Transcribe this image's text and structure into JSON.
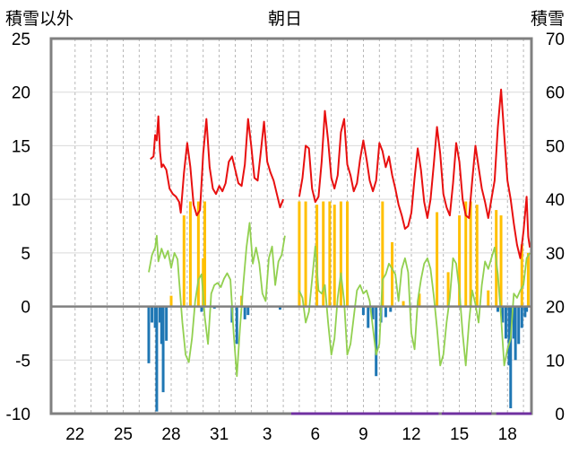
{
  "chart_data": {
    "type": "line",
    "title": "朝日",
    "ylabel_left": "積雪以外",
    "ylabel_right": "積雪",
    "x_tick_labels": [
      "22",
      "25",
      "28",
      "31",
      "3",
      "6",
      "9",
      "12",
      "15",
      "18"
    ],
    "ylim_left": [
      -10,
      25
    ],
    "ylim_right": [
      0,
      70
    ],
    "y_ticks_left": [
      -10,
      -5,
      0,
      5,
      10,
      15,
      20,
      25
    ],
    "y_ticks_right": [
      0,
      10,
      20,
      30,
      40,
      50,
      60,
      70
    ],
    "x_range_days": [
      0,
      30
    ],
    "vertical_grid_days": [
      1.5,
      2.5,
      3.5,
      4.5,
      5.5,
      6.5,
      7.5,
      8.5,
      9.5,
      10.5,
      11.5,
      12.5,
      13.5,
      14.5,
      15.5,
      16.5,
      17.5,
      18.5,
      19.5,
      20.5,
      21.5,
      22.5,
      23.5,
      24.5,
      25.5,
      26.5,
      27.5,
      28.5,
      29.5
    ],
    "tick_label_days": [
      1.5,
      4.5,
      7.5,
      10.5,
      13.5,
      16.5,
      19.5,
      22.5,
      25.5,
      28.5
    ],
    "grid": true,
    "colors": {
      "snow_depth": "#e81010",
      "temperature": "#92d050",
      "precip_positive": "#ffc000",
      "precip_negative": "#1f77b4",
      "zero_line": "#808080",
      "frame": "#808080",
      "missing_bar": "#7030a0"
    },
    "series": [
      {
        "name": "積雪",
        "axis": "right",
        "points": [
          [
            6.2,
            47.5
          ],
          [
            6.4,
            48.0
          ],
          [
            6.5,
            52.0
          ],
          [
            6.6,
            51.0
          ],
          [
            6.7,
            55.5
          ],
          [
            6.8,
            49.0
          ],
          [
            6.9,
            46.0
          ],
          [
            7.0,
            46.5
          ],
          [
            7.2,
            45.5
          ],
          [
            7.4,
            42.0
          ],
          [
            7.6,
            41.0
          ],
          [
            7.8,
            40.5
          ],
          [
            8.0,
            39.5
          ],
          [
            8.1,
            37.5
          ],
          [
            8.3,
            45.0
          ],
          [
            8.5,
            50.5
          ],
          [
            8.7,
            46.0
          ],
          [
            8.9,
            39.0
          ],
          [
            9.1,
            37.0
          ],
          [
            9.3,
            38.0
          ],
          [
            9.5,
            48.5
          ],
          [
            9.7,
            55.0
          ],
          [
            9.9,
            46.0
          ],
          [
            10.1,
            42.0
          ],
          [
            10.3,
            41.0
          ],
          [
            10.5,
            42.5
          ],
          [
            10.7,
            41.5
          ],
          [
            10.9,
            43.0
          ],
          [
            11.1,
            47.0
          ],
          [
            11.3,
            48.0
          ],
          [
            11.5,
            45.5
          ],
          [
            11.7,
            43.0
          ],
          [
            11.9,
            42.5
          ],
          [
            12.1,
            46.5
          ],
          [
            12.3,
            55.0
          ],
          [
            12.5,
            50.0
          ],
          [
            12.7,
            44.0
          ],
          [
            12.9,
            43.5
          ],
          [
            13.1,
            49.0
          ],
          [
            13.3,
            54.5
          ],
          [
            13.5,
            47.0
          ],
          [
            13.7,
            45.0
          ],
          [
            13.9,
            43.5
          ],
          [
            14.1,
            41.0
          ],
          [
            14.3,
            38.5
          ],
          [
            14.5,
            40.0
          ],
          [
            15.5,
            40.5
          ],
          [
            15.7,
            44.0
          ],
          [
            15.9,
            50.0
          ],
          [
            16.1,
            49.5
          ],
          [
            16.3,
            42.0
          ],
          [
            16.5,
            39.5
          ],
          [
            16.7,
            40.5
          ],
          [
            16.9,
            47.0
          ],
          [
            17.1,
            56.5
          ],
          [
            17.3,
            51.0
          ],
          [
            17.5,
            44.0
          ],
          [
            17.7,
            42.0
          ],
          [
            17.9,
            44.5
          ],
          [
            18.1,
            52.5
          ],
          [
            18.3,
            55.0
          ],
          [
            18.5,
            46.5
          ],
          [
            18.7,
            44.5
          ],
          [
            18.9,
            41.5
          ],
          [
            19.1,
            43.0
          ],
          [
            19.3,
            47.5
          ],
          [
            19.5,
            51.0
          ],
          [
            19.7,
            47.5
          ],
          [
            19.9,
            43.5
          ],
          [
            20.1,
            41.5
          ],
          [
            20.3,
            43.5
          ],
          [
            20.5,
            50.5
          ],
          [
            20.7,
            49.0
          ],
          [
            20.9,
            46.0
          ],
          [
            21.1,
            48.0
          ],
          [
            21.3,
            44.5
          ],
          [
            21.5,
            42.0
          ],
          [
            21.7,
            39.0
          ],
          [
            21.9,
            37.0
          ],
          [
            22.1,
            34.5
          ],
          [
            22.3,
            35.0
          ],
          [
            22.5,
            37.5
          ],
          [
            22.7,
            44.0
          ],
          [
            22.9,
            49.5
          ],
          [
            23.1,
            45.5
          ],
          [
            23.3,
            39.5
          ],
          [
            23.5,
            36.5
          ],
          [
            23.7,
            40.0
          ],
          [
            23.9,
            46.5
          ],
          [
            24.1,
            53.5
          ],
          [
            24.3,
            48.5
          ],
          [
            24.5,
            41.0
          ],
          [
            24.7,
            38.5
          ],
          [
            24.9,
            37.0
          ],
          [
            25.1,
            43.0
          ],
          [
            25.3,
            50.5
          ],
          [
            25.5,
            47.0
          ],
          [
            25.7,
            40.0
          ],
          [
            25.9,
            37.0
          ],
          [
            26.1,
            36.5
          ],
          [
            26.3,
            43.5
          ],
          [
            26.5,
            50.0
          ],
          [
            26.7,
            46.0
          ],
          [
            26.9,
            42.0
          ],
          [
            27.1,
            39.5
          ],
          [
            27.3,
            36.5
          ],
          [
            27.5,
            40.0
          ],
          [
            27.7,
            43.5
          ],
          [
            27.9,
            53.5
          ],
          [
            28.1,
            60.5
          ],
          [
            28.3,
            52.0
          ],
          [
            28.5,
            43.5
          ],
          [
            28.7,
            40.0
          ],
          [
            28.9,
            35.5
          ],
          [
            29.1,
            31.5
          ],
          [
            29.3,
            29.0
          ],
          [
            29.5,
            34.0
          ],
          [
            29.7,
            40.5
          ],
          [
            29.8,
            33.0
          ],
          [
            29.9,
            31.0
          ]
        ]
      },
      {
        "name": "気温",
        "axis": "left",
        "points": [
          [
            6.1,
            3.2
          ],
          [
            6.3,
            4.8
          ],
          [
            6.5,
            5.5
          ],
          [
            6.6,
            6.6
          ],
          [
            6.7,
            4.2
          ],
          [
            6.9,
            5.4
          ],
          [
            7.1,
            4.5
          ],
          [
            7.3,
            5.2
          ],
          [
            7.5,
            3.6
          ],
          [
            7.7,
            5.0
          ],
          [
            7.9,
            4.4
          ],
          [
            8.0,
            2.4
          ],
          [
            8.2,
            -1.5
          ],
          [
            8.4,
            -4.5
          ],
          [
            8.6,
            -5.2
          ],
          [
            8.8,
            -3.0
          ],
          [
            9.0,
            0.5
          ],
          [
            9.2,
            2.5
          ],
          [
            9.4,
            3.0
          ],
          [
            9.6,
            -1.0
          ],
          [
            9.8,
            -3.5
          ],
          [
            10.0,
            1.2
          ],
          [
            10.2,
            2.0
          ],
          [
            10.4,
            2.2
          ],
          [
            10.6,
            1.8
          ],
          [
            10.8,
            2.6
          ],
          [
            11.0,
            3.1
          ],
          [
            11.2,
            2.5
          ],
          [
            11.4,
            -2.5
          ],
          [
            11.6,
            -6.5
          ],
          [
            11.8,
            -2.0
          ],
          [
            12.0,
            2.0
          ],
          [
            12.2,
            5.5
          ],
          [
            12.4,
            7.8
          ],
          [
            12.6,
            4.0
          ],
          [
            12.8,
            5.5
          ],
          [
            13.0,
            4.0
          ],
          [
            13.2,
            1.2
          ],
          [
            13.4,
            0.5
          ],
          [
            13.6,
            4.5
          ],
          [
            13.8,
            5.6
          ],
          [
            14.0,
            2.0
          ],
          [
            14.2,
            4.2
          ],
          [
            14.4,
            4.8
          ],
          [
            14.6,
            6.6
          ],
          [
            15.5,
            1.5
          ],
          [
            15.7,
            0.8
          ],
          [
            15.9,
            -1.5
          ],
          [
            16.1,
            -0.5
          ],
          [
            16.3,
            2.5
          ],
          [
            16.5,
            5.6
          ],
          [
            16.7,
            1.5
          ],
          [
            16.9,
            1.2
          ],
          [
            17.1,
            2.0
          ],
          [
            17.3,
            -1.5
          ],
          [
            17.5,
            -4.5
          ],
          [
            17.7,
            -3.0
          ],
          [
            17.9,
            0.8
          ],
          [
            18.1,
            3.1
          ],
          [
            18.3,
            0.5
          ],
          [
            18.5,
            -4.5
          ],
          [
            18.7,
            -3.5
          ],
          [
            18.9,
            -1.0
          ],
          [
            19.1,
            1.5
          ],
          [
            19.3,
            2.0
          ],
          [
            19.5,
            1.2
          ],
          [
            19.7,
            1.5
          ],
          [
            19.9,
            0.5
          ],
          [
            20.1,
            -2.0
          ],
          [
            20.3,
            -4.5
          ],
          [
            20.5,
            -3.5
          ],
          [
            20.7,
            2.5
          ],
          [
            20.9,
            3.0
          ],
          [
            21.1,
            4.0
          ],
          [
            21.3,
            3.5
          ],
          [
            21.5,
            3.0
          ],
          [
            21.7,
            0.5
          ],
          [
            21.9,
            3.5
          ],
          [
            22.1,
            4.5
          ],
          [
            22.3,
            3.2
          ],
          [
            22.5,
            -2.5
          ],
          [
            22.7,
            -4.0
          ],
          [
            22.9,
            0.5
          ],
          [
            23.1,
            2.5
          ],
          [
            23.3,
            4.0
          ],
          [
            23.5,
            4.5
          ],
          [
            23.7,
            3.5
          ],
          [
            23.9,
            1.0
          ],
          [
            24.1,
            -2.0
          ],
          [
            24.3,
            -5.5
          ],
          [
            24.5,
            -4.5
          ],
          [
            24.7,
            -1.5
          ],
          [
            24.9,
            0.8
          ],
          [
            25.1,
            4.5
          ],
          [
            25.3,
            4.0
          ],
          [
            25.5,
            1.5
          ],
          [
            25.7,
            -2.5
          ],
          [
            25.9,
            -5.5
          ],
          [
            26.1,
            -1.5
          ],
          [
            26.3,
            1.5
          ],
          [
            26.5,
            0.2
          ],
          [
            26.7,
            -1.5
          ],
          [
            26.9,
            2.0
          ],
          [
            27.1,
            4.2
          ],
          [
            27.3,
            3.5
          ],
          [
            27.5,
            4.5
          ],
          [
            27.7,
            5.5
          ],
          [
            27.9,
            3.0
          ],
          [
            28.1,
            -1.0
          ],
          [
            28.3,
            -5.5
          ],
          [
            28.5,
            -4.0
          ],
          [
            28.7,
            -3.0
          ],
          [
            28.9,
            1.2
          ],
          [
            29.1,
            0.8
          ],
          [
            29.3,
            1.5
          ],
          [
            29.5,
            2.0
          ],
          [
            29.7,
            4.5
          ],
          [
            29.9,
            5.0
          ]
        ]
      }
    ],
    "bars": {
      "name": "降水",
      "axis": "left",
      "positive": [
        [
          7.5,
          1.0
        ],
        [
          8.3,
          8.5
        ],
        [
          8.7,
          9.8
        ],
        [
          9.2,
          9.8
        ],
        [
          9.5,
          4.5
        ],
        [
          9.6,
          9.8
        ],
        [
          11.9,
          1.0
        ],
        [
          15.5,
          9.8
        ],
        [
          15.9,
          9.8
        ],
        [
          16.6,
          9.5
        ],
        [
          17.0,
          9.8
        ],
        [
          17.4,
          9.8
        ],
        [
          17.7,
          9.5
        ],
        [
          18.1,
          9.8
        ],
        [
          18.5,
          9.8
        ],
        [
          20.7,
          9.8
        ],
        [
          21.3,
          6.0
        ],
        [
          22.0,
          0.5
        ],
        [
          23.0,
          1.2
        ],
        [
          24.1,
          8.8
        ],
        [
          24.8,
          3.2
        ],
        [
          25.5,
          8.5
        ],
        [
          25.9,
          9.8
        ],
        [
          26.2,
          9.8
        ],
        [
          26.6,
          9.5
        ],
        [
          27.3,
          1.5
        ],
        [
          27.8,
          9.0
        ],
        [
          28.1,
          8.5
        ],
        [
          29.4,
          5.8
        ],
        [
          29.8,
          5.0
        ]
      ],
      "negative": [
        [
          6.1,
          -5.3
        ],
        [
          6.3,
          -1.5
        ],
        [
          6.5,
          -2.0
        ],
        [
          6.6,
          -9.8
        ],
        [
          6.8,
          -1.5
        ],
        [
          6.9,
          -3.5
        ],
        [
          7.0,
          -8.0
        ],
        [
          7.2,
          -3.2
        ],
        [
          9.4,
          -0.5
        ],
        [
          10.2,
          -0.2
        ],
        [
          11.3,
          -1.5
        ],
        [
          11.6,
          -3.5
        ],
        [
          12.1,
          -1.2
        ],
        [
          12.3,
          -0.8
        ],
        [
          14.3,
          -0.3
        ],
        [
          19.5,
          -0.8
        ],
        [
          19.8,
          -2.0
        ],
        [
          20.1,
          -1.2
        ],
        [
          20.3,
          -6.5
        ],
        [
          20.6,
          -1.5
        ],
        [
          20.9,
          -1.0
        ],
        [
          21.2,
          -0.5
        ],
        [
          27.9,
          -0.5
        ],
        [
          28.2,
          -1.5
        ],
        [
          28.4,
          -3.0
        ],
        [
          28.6,
          -5.5
        ],
        [
          28.7,
          -9.5
        ],
        [
          28.9,
          -3.0
        ],
        [
          29.0,
          -5.0
        ],
        [
          29.2,
          -3.5
        ],
        [
          29.4,
          -2.0
        ],
        [
          29.6,
          -1.0
        ],
        [
          29.7,
          -0.5
        ]
      ]
    },
    "missing_ranges": [
      [
        15.0,
        24.2
      ],
      [
        24.4,
        27.5
      ],
      [
        27.8,
        30.0
      ]
    ]
  }
}
